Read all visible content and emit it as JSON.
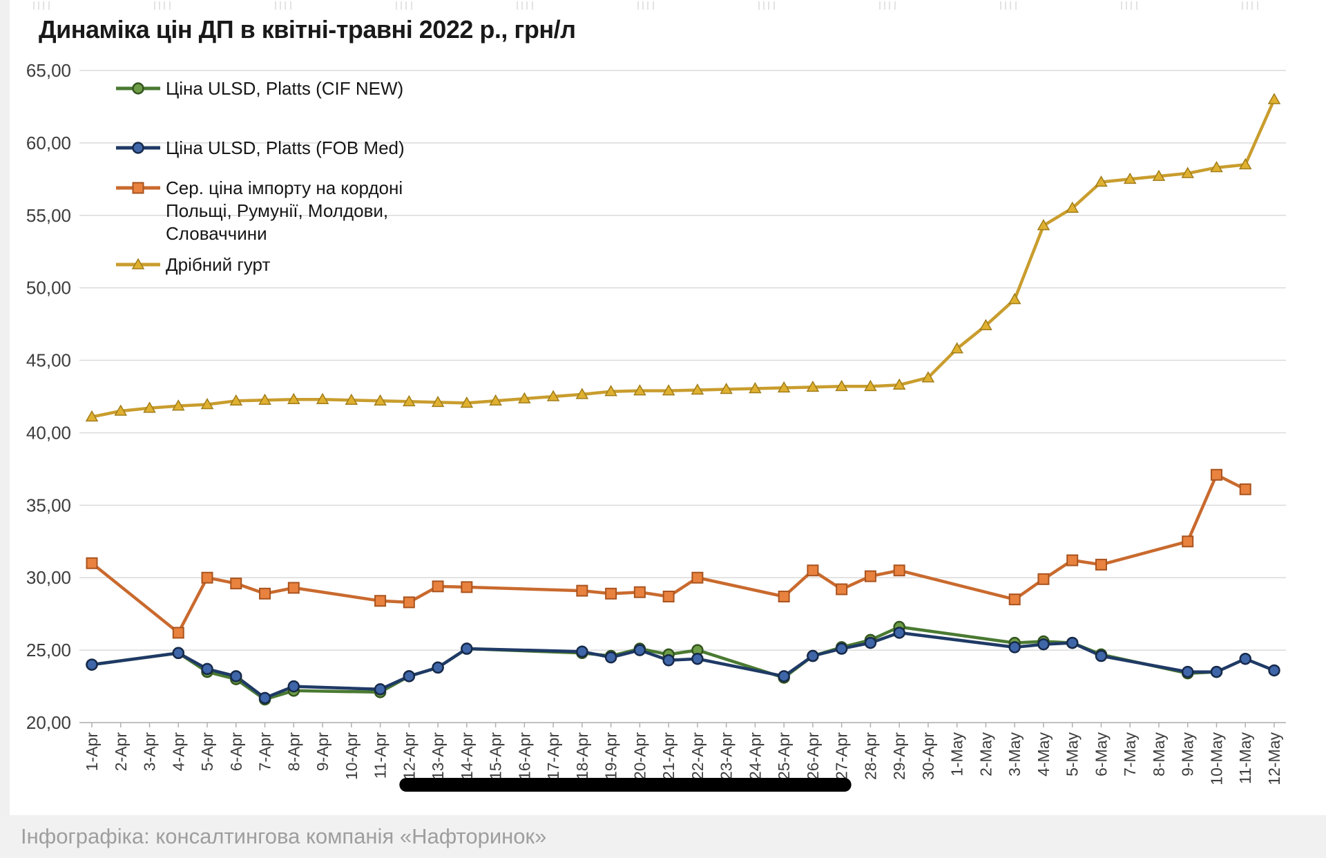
{
  "title": "Динаміка цін ДП в квітні-травні 2022 р., грн/л",
  "caption": "Інфографіка: консалтингова компанія «Нафторинок»",
  "chart_data": {
    "type": "line",
    "title": "Динаміка цін ДП в квітні-травні 2022 р., грн/л",
    "ylabel": "",
    "xlabel": "",
    "ylim": [
      20,
      65
    ],
    "grid": true,
    "legend_position": "top-left",
    "ytick_labels": [
      "20,00",
      "25,00",
      "30,00",
      "35,00",
      "40,00",
      "45,00",
      "50,00",
      "55,00",
      "60,00",
      "65,00"
    ],
    "ytick_values": [
      20,
      25,
      30,
      35,
      40,
      45,
      50,
      55,
      60,
      65
    ],
    "categories": [
      "1-Apr",
      "2-Apr",
      "3-Apr",
      "4-Apr",
      "5-Apr",
      "6-Apr",
      "7-Apr",
      "8-Apr",
      "9-Apr",
      "10-Apr",
      "11-Apr",
      "12-Apr",
      "13-Apr",
      "14-Apr",
      "15-Apr",
      "16-Apr",
      "17-Apr",
      "18-Apr",
      "19-Apr",
      "20-Apr",
      "21-Apr",
      "22-Apr",
      "23-Apr",
      "24-Apr",
      "25-Apr",
      "26-Apr",
      "27-Apr",
      "28-Apr",
      "29-Apr",
      "30-Apr",
      "1-May",
      "2-May",
      "3-May",
      "4-May",
      "5-May",
      "6-May",
      "7-May",
      "8-May",
      "9-May",
      "10-May",
      "11-May",
      "12-May"
    ],
    "series": [
      {
        "id": "cif-new",
        "name": "Ціна ULSD, Platts (CIF NEW)",
        "label_lines": [
          "Ціна ULSD, Platts (CIF NEW)"
        ],
        "color": "#4a7a32",
        "marker": "circle",
        "marker_fill": "#6d9c46",
        "marker_stroke": "#33551f",
        "values": [
          24.0,
          null,
          null,
          24.8,
          23.5,
          23.0,
          21.6,
          22.2,
          null,
          null,
          22.1,
          23.2,
          23.8,
          25.1,
          null,
          null,
          null,
          24.8,
          24.6,
          25.1,
          24.7,
          25.0,
          null,
          null,
          23.1,
          24.6,
          25.2,
          25.7,
          26.6,
          null,
          null,
          null,
          25.5,
          25.6,
          25.5,
          24.7,
          null,
          null,
          23.4,
          23.5,
          null,
          null
        ]
      },
      {
        "id": "fob-med",
        "name": "Ціна ULSD, Platts (FOB Med)",
        "label_lines": [
          "Ціна ULSD, Platts (FOB Med)"
        ],
        "color": "#1f3a66",
        "marker": "circle",
        "marker_fill": "#3f66a8",
        "marker_stroke": "#16294a",
        "values": [
          24.0,
          null,
          null,
          24.8,
          23.7,
          23.2,
          21.7,
          22.5,
          null,
          null,
          22.3,
          23.2,
          23.8,
          25.1,
          null,
          null,
          null,
          24.9,
          24.5,
          25.0,
          24.3,
          24.4,
          null,
          null,
          23.2,
          24.6,
          25.1,
          25.5,
          26.2,
          null,
          null,
          null,
          25.2,
          25.4,
          25.5,
          24.6,
          null,
          null,
          23.5,
          23.5,
          24.4,
          23.6
        ]
      },
      {
        "id": "import-border",
        "name": "Сер. ціна імпорту на кордоні Польщі, Румунії, Молдови, Словаччини",
        "label_lines": [
          "Сер. ціна імпорту на кордоні",
          "Польщі, Румунії, Молдови,",
          "Словаччини"
        ],
        "color": "#c96a2e",
        "marker": "square",
        "marker_fill": "#e8823e",
        "marker_stroke": "#a9531f",
        "values": [
          31.0,
          null,
          null,
          26.2,
          30.0,
          29.6,
          28.9,
          29.3,
          null,
          null,
          28.4,
          28.3,
          29.4,
          29.35,
          null,
          null,
          null,
          29.1,
          28.9,
          29.0,
          28.7,
          30.0,
          null,
          null,
          28.7,
          30.5,
          29.2,
          30.1,
          30.5,
          null,
          null,
          null,
          28.5,
          29.9,
          31.2,
          30.9,
          null,
          null,
          32.5,
          37.1,
          36.1,
          null
        ]
      },
      {
        "id": "small-wholesale",
        "name": "Дрібний гурт",
        "label_lines": [
          "Дрібний гурт"
        ],
        "color": "#c99d2e",
        "marker": "triangle",
        "marker_fill": "#e0b030",
        "marker_stroke": "#a07d1a",
        "values": [
          41.1,
          41.5,
          41.7,
          41.85,
          41.95,
          42.2,
          42.25,
          42.3,
          42.3,
          42.25,
          42.2,
          42.15,
          42.1,
          42.05,
          42.2,
          42.35,
          42.5,
          42.65,
          42.85,
          42.9,
          42.9,
          42.95,
          43.0,
          43.05,
          43.1,
          43.15,
          43.2,
          43.2,
          43.3,
          43.8,
          45.8,
          47.4,
          49.2,
          54.3,
          55.5,
          57.3,
          57.5,
          57.7,
          57.9,
          58.3,
          58.5,
          63.0
        ]
      }
    ],
    "censor_bar": {
      "from": "12-Apr",
      "to": "27-Apr",
      "color": "#000000"
    }
  }
}
